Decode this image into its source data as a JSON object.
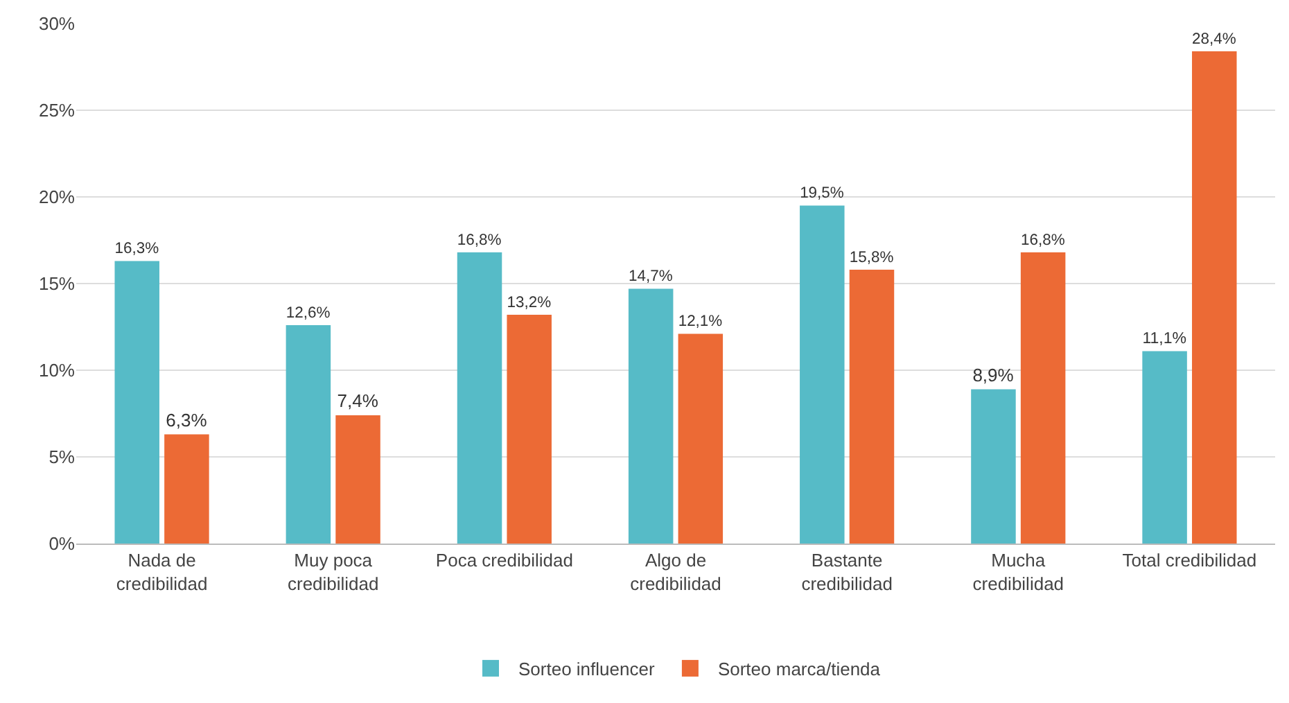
{
  "chart_data": {
    "type": "bar",
    "categories": [
      "Nada de\ncredibilidad",
      "Muy poca\ncredibilidad",
      "Poca credibilidad",
      "Algo de\ncredibilidad",
      "Bastante\ncredibilidad",
      "Mucha\ncredibilidad",
      "Total credibilidad"
    ],
    "series": [
      {
        "name": "Sorteo influencer",
        "color": "#56bbc7",
        "values": [
          16.3,
          12.6,
          16.8,
          14.7,
          19.5,
          8.9,
          11.1
        ],
        "value_labels": [
          "16,3%",
          "12,6%",
          "16,8%",
          "14,7%",
          "19,5%",
          "8,9%",
          "11,1%"
        ]
      },
      {
        "name": "Sorteo marca/tienda",
        "color": "#ec6a35",
        "values": [
          6.3,
          7.4,
          13.2,
          12.1,
          15.8,
          16.8,
          28.4
        ],
        "value_labels": [
          "6,3%",
          "7,4%",
          "13,2%",
          "12,1%",
          "15,8%",
          "16,8%",
          "28,4%"
        ]
      }
    ],
    "ylim": [
      0,
      30
    ],
    "yticks": [
      {
        "value": 0,
        "label": "0%"
      },
      {
        "value": 5,
        "label": "5%"
      },
      {
        "value": 10,
        "label": "10%"
      },
      {
        "value": 15,
        "label": "15%"
      },
      {
        "value": 20,
        "label": "20%"
      },
      {
        "value": 25,
        "label": "25%"
      },
      {
        "value": 30,
        "label": "30%"
      }
    ],
    "grid": "y",
    "legend": "bottom"
  }
}
